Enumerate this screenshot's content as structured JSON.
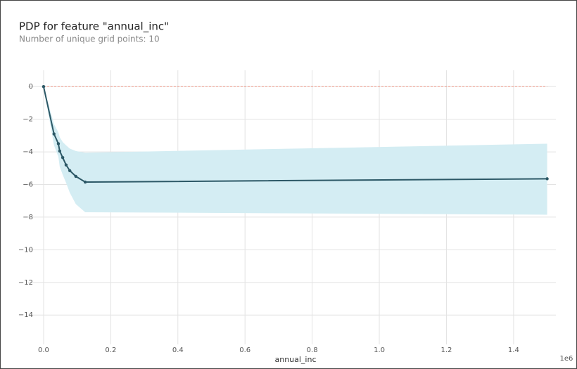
{
  "chart_data": {
    "type": "pdp",
    "title": "PDP for feature \"annual_inc\"",
    "subtitle": "Number of unique grid points: 10",
    "xlabel": "annual_inc",
    "x_offset_label": "1e6",
    "x": [
      0,
      0.031,
      0.044,
      0.048,
      0.057,
      0.067,
      0.078,
      0.096,
      0.124,
      1.5
    ],
    "values": [
      0,
      -2.9,
      -3.5,
      -3.95,
      -4.35,
      -4.8,
      -5.15,
      -5.5,
      -5.85,
      -5.65
    ],
    "ci_upper": [
      0,
      -2.3,
      -2.8,
      -3.1,
      -3.4,
      -3.6,
      -3.8,
      -3.95,
      -4.05,
      -3.5
    ],
    "ci_lower": [
      0,
      -3.6,
      -4.3,
      -4.9,
      -5.4,
      -5.9,
      -6.5,
      -7.2,
      -7.7,
      -7.85
    ],
    "reference_line": 0,
    "line_color": "#2c5866",
    "band_color": "#d4edf3",
    "reference_color": "#f29a8a",
    "xlim": [
      -0.046,
      1.526
    ],
    "ylim": [
      -15.8,
      1
    ],
    "xticks": [
      {
        "value": 0,
        "label": "0.0"
      },
      {
        "value": 0.2,
        "label": "0.2"
      },
      {
        "value": 0.4,
        "label": "0.4"
      },
      {
        "value": 0.6,
        "label": "0.6"
      },
      {
        "value": 0.8,
        "label": "0.8"
      },
      {
        "value": 1.0,
        "label": "1.0"
      },
      {
        "value": 1.2,
        "label": "1.2"
      },
      {
        "value": 1.4,
        "label": "1.4"
      }
    ],
    "yticks": [
      0,
      {
        "value": -2,
        "label": "−2"
      },
      {
        "value": -4,
        "label": "−4"
      },
      {
        "value": -6,
        "label": "−6"
      },
      {
        "value": -8,
        "label": "−8"
      },
      {
        "value": -10,
        "label": "−10"
      },
      {
        "value": -12,
        "label": "−12"
      },
      {
        "value": -14,
        "label": "−14"
      }
    ],
    "grid": true
  }
}
